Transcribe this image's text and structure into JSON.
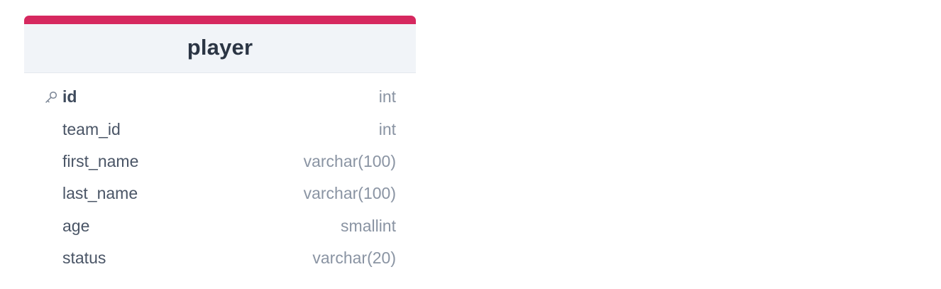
{
  "table": {
    "name": "player",
    "accent_color": "#d6285f",
    "columns": [
      {
        "name": "id",
        "type": "int",
        "primary_key": true,
        "icon": "key-icon"
      },
      {
        "name": "team_id",
        "type": "int",
        "primary_key": false
      },
      {
        "name": "first_name",
        "type": "varchar(100)",
        "primary_key": false
      },
      {
        "name": "last_name",
        "type": "varchar(100)",
        "primary_key": false
      },
      {
        "name": "age",
        "type": "smallint",
        "primary_key": false
      },
      {
        "name": "status",
        "type": "varchar(20)",
        "primary_key": false
      }
    ]
  }
}
